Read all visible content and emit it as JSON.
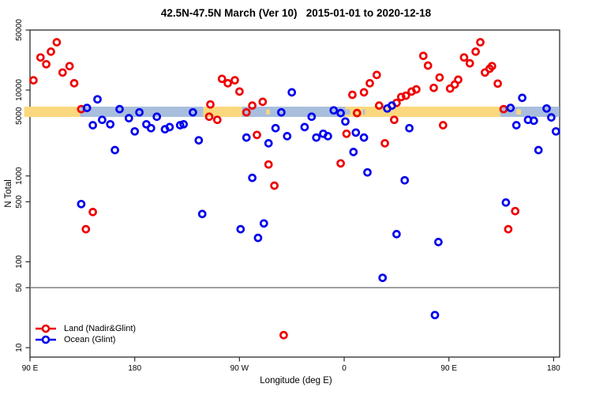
{
  "chart_data": {
    "type": "scatter",
    "title": "42.5N-47.5N March (Ver 10)   2015-01-01 to 2020-12-18",
    "xlabel": "Longitude (deg E)",
    "ylabel": "N Total",
    "x_axis": {
      "range": [
        90,
        545
      ],
      "note": "longitude axis wraps eastward through 450 deg",
      "ticks": [
        {
          "value": 90,
          "label": "90 E"
        },
        {
          "value": 180,
          "label": "180"
        },
        {
          "value": 270,
          "label": "90 W"
        },
        {
          "value": 360,
          "label": "0"
        },
        {
          "value": 450,
          "label": "90 E"
        },
        {
          "value": 540,
          "label": "180"
        }
      ]
    },
    "y_axis": {
      "scale": "log",
      "range": [
        8,
        50000
      ],
      "ticks": [
        10,
        50,
        100,
        500,
        1000,
        5000,
        10000,
        50000
      ]
    },
    "reference_line": {
      "value": 50,
      "color": "#7f7f7f"
    },
    "land_ocean_strip": {
      "value_range": [
        4900,
        6400
      ],
      "land_color": "#FBD87D",
      "ocean_color": "#A8BEDC",
      "segments": [
        {
          "from": 85,
          "to": 133,
          "type": "land"
        },
        {
          "from": 133,
          "to": 239,
          "type": "ocean"
        },
        {
          "from": 239,
          "to": 272,
          "type": "land"
        },
        {
          "from": 272,
          "to": 361,
          "type": "ocean"
        },
        {
          "from": 361,
          "to": 494,
          "type": "land"
        },
        {
          "from": 494,
          "to": 545,
          "type": "ocean"
        }
      ],
      "speckles": [
        {
          "from": 293,
          "to": 296,
          "type": "land"
        },
        {
          "from": 361,
          "to": 365,
          "type": "ocean"
        },
        {
          "from": 376,
          "to": 378,
          "type": "ocean"
        },
        {
          "from": 508,
          "to": 512,
          "type": "land"
        }
      ]
    },
    "series": [
      {
        "name": "Land (Nadir&Glint)",
        "color": "#EE0000",
        "points": [
          [
            93,
            13000
          ],
          [
            99,
            24000
          ],
          [
            104,
            20000
          ],
          [
            108,
            28000
          ],
          [
            113,
            36000
          ],
          [
            118,
            16000
          ],
          [
            124,
            19000
          ],
          [
            128,
            12000
          ],
          [
            134,
            6000
          ],
          [
            138,
            240
          ],
          [
            144,
            380
          ],
          [
            244,
            4900
          ],
          [
            245,
            6800
          ],
          [
            251,
            4500
          ],
          [
            255,
            13500
          ],
          [
            260,
            12000
          ],
          [
            266,
            13000
          ],
          [
            270,
            9600
          ],
          [
            276,
            5500
          ],
          [
            281,
            6600
          ],
          [
            285,
            3000
          ],
          [
            290,
            7300
          ],
          [
            295,
            1360
          ],
          [
            300,
            770
          ],
          [
            308,
            14
          ],
          [
            357,
            1400
          ],
          [
            362,
            3100
          ],
          [
            367,
            8800
          ],
          [
            371,
            5400
          ],
          [
            377,
            9400
          ],
          [
            382,
            12000
          ],
          [
            388,
            15000
          ],
          [
            390,
            6600
          ],
          [
            395,
            2400
          ],
          [
            403,
            4500
          ],
          [
            405,
            7100
          ],
          [
            409,
            8300
          ],
          [
            413,
            8600
          ],
          [
            418,
            9600
          ],
          [
            422,
            10200
          ],
          [
            428,
            25000
          ],
          [
            432,
            19300
          ],
          [
            437,
            10600
          ],
          [
            442,
            14000
          ],
          [
            445,
            3900
          ],
          [
            451,
            10400
          ],
          [
            455,
            11600
          ],
          [
            458,
            13200
          ],
          [
            463,
            24000
          ],
          [
            468,
            20500
          ],
          [
            473,
            28000
          ],
          [
            477,
            36000
          ],
          [
            481,
            16000
          ],
          [
            485,
            17700
          ],
          [
            487,
            19000
          ],
          [
            492,
            11900
          ],
          [
            497,
            6000
          ],
          [
            501,
            240
          ],
          [
            507,
            390
          ]
        ]
      },
      {
        "name": "Ocean (Glint)",
        "color": "#0000EE",
        "points": [
          [
            134,
            470
          ],
          [
            139,
            6200
          ],
          [
            144,
            3900
          ],
          [
            148,
            7800
          ],
          [
            152,
            4500
          ],
          [
            159,
            4000
          ],
          [
            163,
            2000
          ],
          [
            167,
            6000
          ],
          [
            175,
            4700
          ],
          [
            180,
            3300
          ],
          [
            184,
            5500
          ],
          [
            190,
            4000
          ],
          [
            194,
            3600
          ],
          [
            199,
            4900
          ],
          [
            206,
            3500
          ],
          [
            210,
            3700
          ],
          [
            219,
            3900
          ],
          [
            222,
            4000
          ],
          [
            230,
            5500
          ],
          [
            235,
            2600
          ],
          [
            238,
            360
          ],
          [
            271,
            240
          ],
          [
            276,
            2800
          ],
          [
            281,
            950
          ],
          [
            286,
            190
          ],
          [
            291,
            280
          ],
          [
            295,
            2400
          ],
          [
            301,
            3600
          ],
          [
            306,
            5500
          ],
          [
            311,
            2900
          ],
          [
            315,
            9400
          ],
          [
            326,
            3700
          ],
          [
            332,
            4900
          ],
          [
            336,
            2800
          ],
          [
            342,
            3100
          ],
          [
            346,
            2900
          ],
          [
            351,
            5800
          ],
          [
            357,
            5400
          ],
          [
            361,
            4300
          ],
          [
            368,
            1900
          ],
          [
            370,
            3200
          ],
          [
            377,
            2800
          ],
          [
            380,
            1100
          ],
          [
            393,
            65
          ],
          [
            397,
            6100
          ],
          [
            401,
            6600
          ],
          [
            405,
            210
          ],
          [
            412,
            890
          ],
          [
            416,
            3600
          ],
          [
            438,
            24
          ],
          [
            441,
            170
          ],
          [
            499,
            490
          ],
          [
            503,
            6200
          ],
          [
            508,
            3900
          ],
          [
            513,
            8100
          ],
          [
            518,
            4500
          ],
          [
            523,
            4400
          ],
          [
            527,
            2000
          ],
          [
            534,
            6100
          ],
          [
            538,
            4800
          ],
          [
            542,
            3300
          ]
        ]
      }
    ],
    "legend": {
      "position": "bottom-left"
    }
  }
}
